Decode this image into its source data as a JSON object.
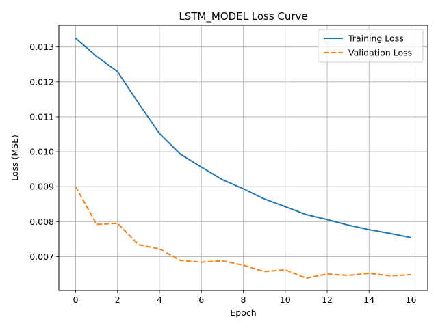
{
  "chart_data": {
    "type": "line",
    "title": "LSTM_MODEL Loss Curve",
    "xlabel": "Epoch",
    "ylabel": "Loss (MSE)",
    "x": [
      0,
      1,
      2,
      3,
      4,
      5,
      6,
      7,
      8,
      9,
      10,
      11,
      12,
      13,
      14,
      15,
      16
    ],
    "xlim": [
      -0.8,
      16.8
    ],
    "ylim": [
      0.00603,
      0.01362
    ],
    "xticks": [
      0,
      2,
      4,
      6,
      8,
      10,
      12,
      14,
      16
    ],
    "xtick_labels": [
      "0",
      "2",
      "4",
      "6",
      "8",
      "10",
      "12",
      "14",
      "16"
    ],
    "yticks": [
      0.007,
      0.008,
      0.009,
      0.01,
      0.011,
      0.012,
      0.013
    ],
    "ytick_labels": [
      "0.007",
      "0.008",
      "0.009",
      "0.010",
      "0.011",
      "0.012",
      "0.013"
    ],
    "grid": true,
    "legend_position": "upper right",
    "series": [
      {
        "name": "Training Loss",
        "color": "#1f77b4",
        "style": "solid",
        "values": [
          0.01325,
          0.01273,
          0.01229,
          0.01139,
          0.01052,
          0.00993,
          0.00956,
          0.0092,
          0.00894,
          0.00865,
          0.00843,
          0.0082,
          0.00806,
          0.0079,
          0.00777,
          0.00766,
          0.00754
        ]
      },
      {
        "name": "Validation Loss",
        "color": "#ff7f0e",
        "style": "dashed",
        "values": [
          0.009,
          0.00792,
          0.00795,
          0.00734,
          0.00722,
          0.00689,
          0.00684,
          0.00688,
          0.00675,
          0.00657,
          0.00662,
          0.00638,
          0.0065,
          0.00646,
          0.00652,
          0.00645,
          0.00648
        ]
      }
    ]
  }
}
